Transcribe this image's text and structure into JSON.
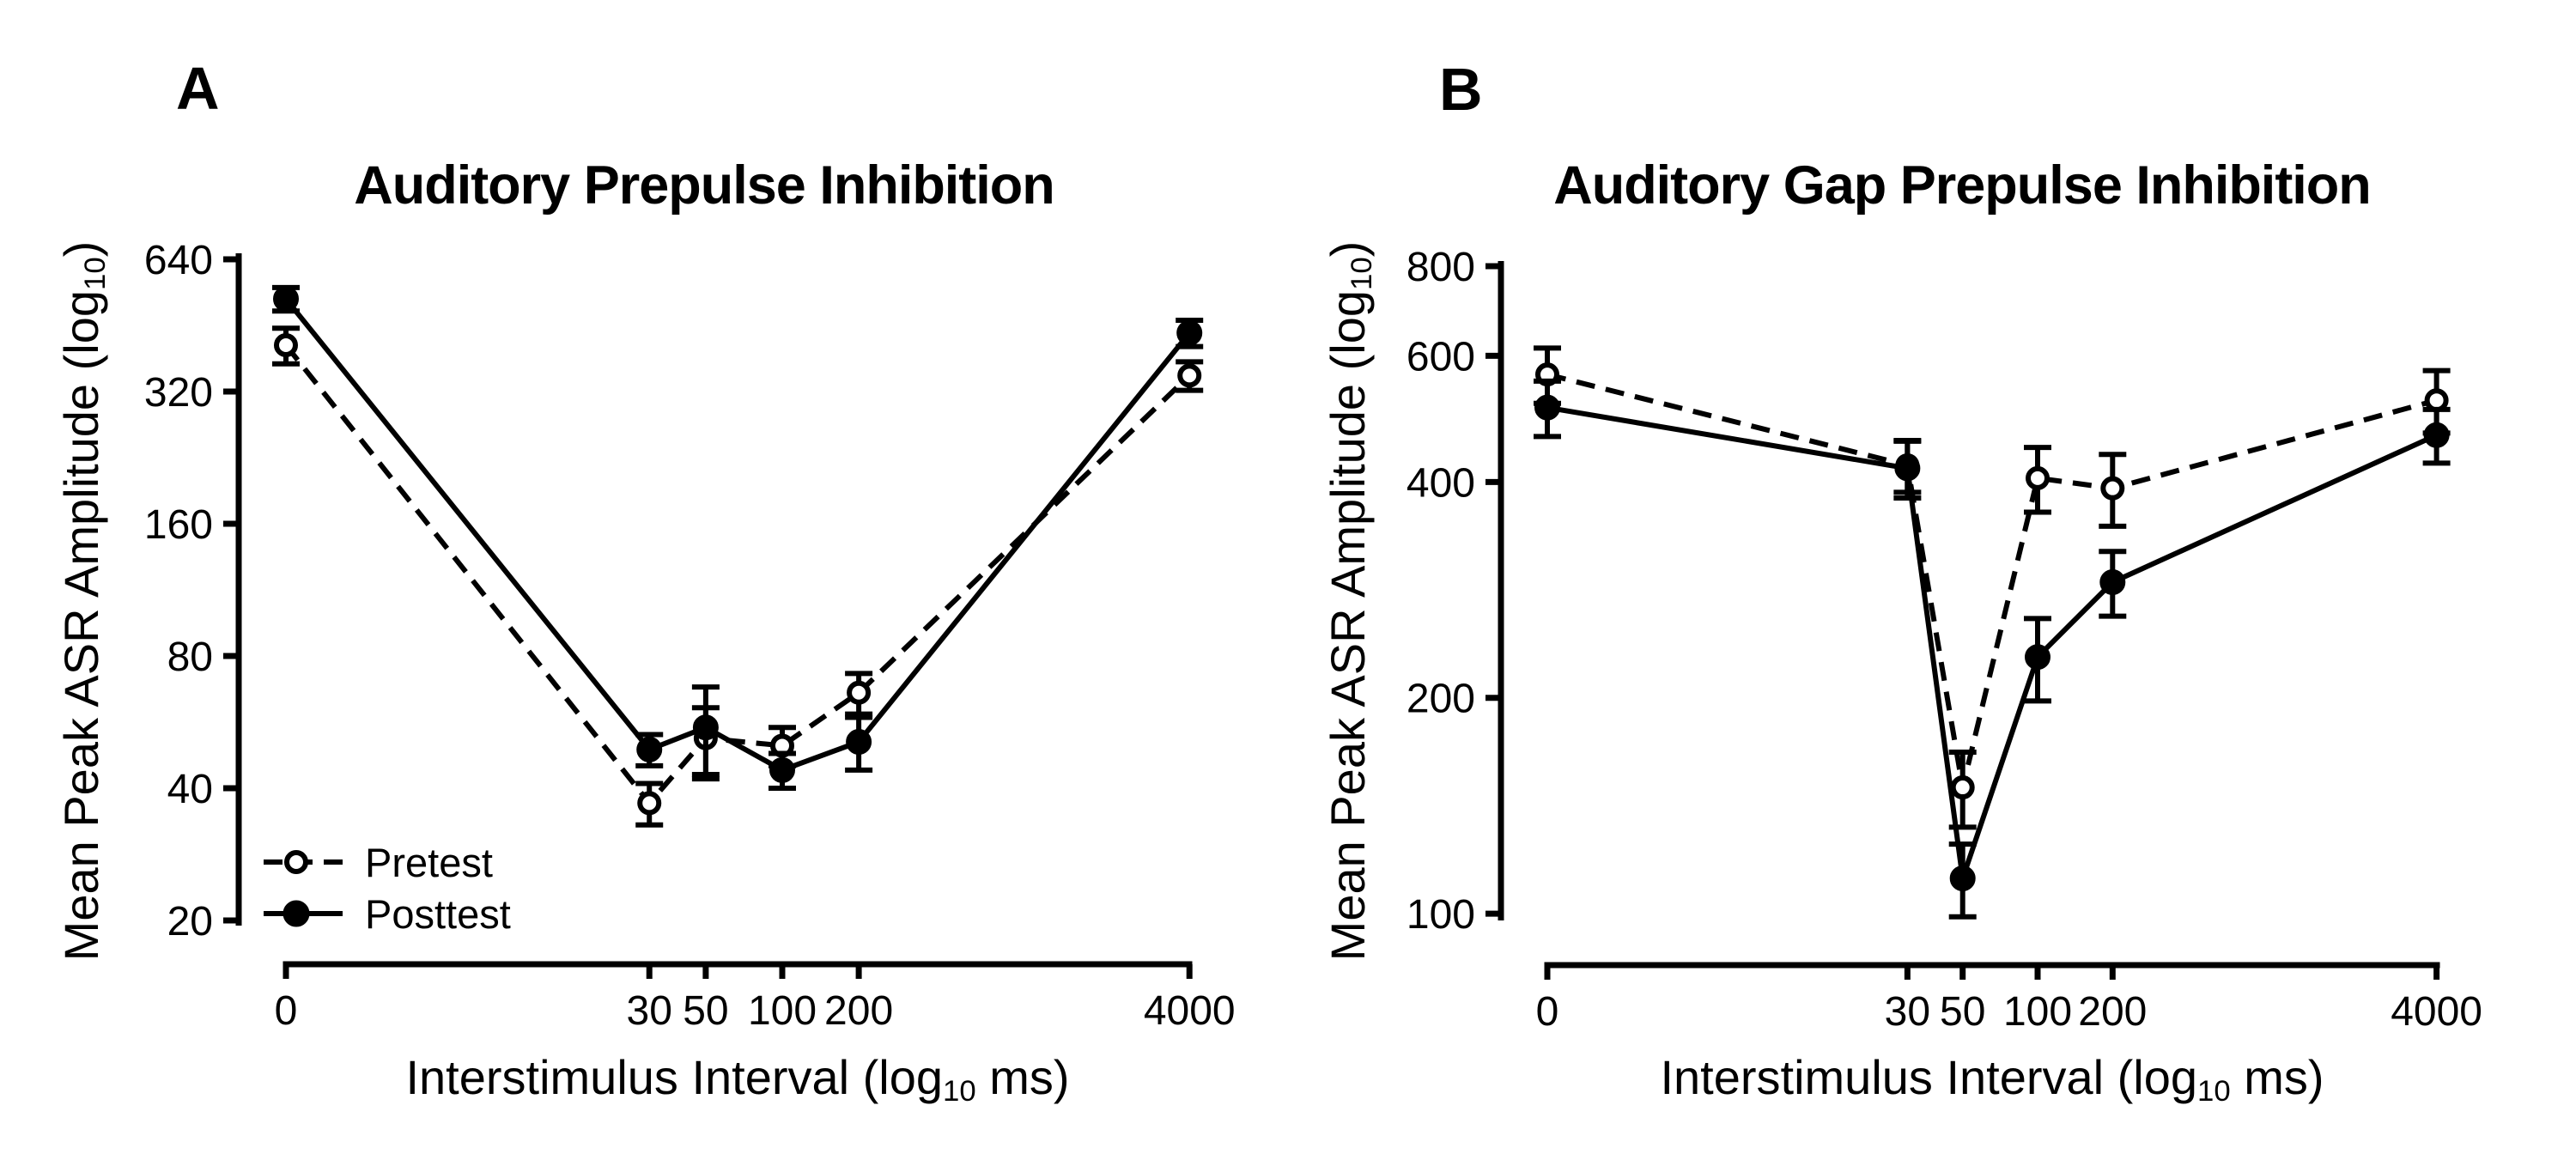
{
  "figure": {
    "panels": [
      {
        "letter": "A",
        "ylabel_pre": "Mean Peak ASR Amplitude (log",
        "ylabel_sub": "10",
        "ylabel_post": ")",
        "xlabel_pre": "Interstimulus Interval (log",
        "xlabel_sub": "10",
        "xlabel_post": " ms)"
      },
      {
        "letter": "B",
        "ylabel_pre": "Mean Peak ASR Amplitude (log",
        "ylabel_sub": "10",
        "ylabel_post": ")",
        "xlabel_pre": "Interstimulus Interval (log",
        "xlabel_sub": "10",
        "xlabel_post": " ms)"
      }
    ],
    "colors": {
      "foreground": "#000000",
      "background": "#ffffff"
    }
  },
  "chart_data": [
    {
      "type": "line",
      "panel": "A",
      "title": "Auditory Prepulse Inhibition",
      "xlabel": "Interstimulus Interval (log10 ms)",
      "ylabel": "Mean Peak ASR Amplitude (log10)",
      "x_scale": "log10",
      "y_scale": "log10",
      "grid": false,
      "x_categories": [
        0,
        30,
        50,
        100,
        200,
        4000
      ],
      "x_tick_labels": [
        "0",
        "30",
        "50",
        "100",
        "200",
        "4000"
      ],
      "y_ticks": [
        640,
        320,
        160,
        80,
        40,
        20
      ],
      "ylim": [
        18,
        700
      ],
      "legend_position": "lower-left-inside",
      "series": [
        {
          "name": "Pretest",
          "marker": "open-circle",
          "line": "dashed",
          "values": [
            408,
            37,
            52,
            50,
            66,
            348
          ],
          "errors": [
            38,
            4,
            9,
            5,
            7,
            26
          ]
        },
        {
          "name": "Posttest",
          "marker": "filled-circle",
          "line": "solid",
          "values": [
            520,
            49,
            55,
            44,
            51,
            435
          ],
          "errors": [
            32,
            4,
            13,
            4,
            7,
            30
          ]
        }
      ]
    },
    {
      "type": "line",
      "panel": "B",
      "title": "Auditory Gap Prepulse Inhibition",
      "xlabel": "Interstimulus Interval (log10 ms)",
      "ylabel": "Mean Peak ASR Amplitude (log10)",
      "x_scale": "log10",
      "y_scale": "log10",
      "grid": false,
      "x_categories": [
        0,
        30,
        50,
        100,
        200,
        4000
      ],
      "x_tick_labels": [
        "0",
        "30",
        "50",
        "100",
        "200",
        "4000"
      ],
      "y_ticks": [
        800,
        600,
        400,
        200,
        100
      ],
      "ylim": [
        90,
        900
      ],
      "legend_position": "none",
      "series": [
        {
          "name": "Pretest",
          "marker": "open-circle",
          "line": "dashed",
          "values": [
            565,
            422,
            150,
            405,
            392,
            520
          ],
          "errors": [
            50,
            35,
            18,
            42,
            45,
            52
          ]
        },
        {
          "name": "Posttest",
          "marker": "filled-circle",
          "line": "solid",
          "values": [
            508,
            418,
            112,
            228,
            290,
            465
          ],
          "errors": [
            45,
            38,
            13,
            30,
            30,
            40
          ]
        }
      ]
    }
  ]
}
